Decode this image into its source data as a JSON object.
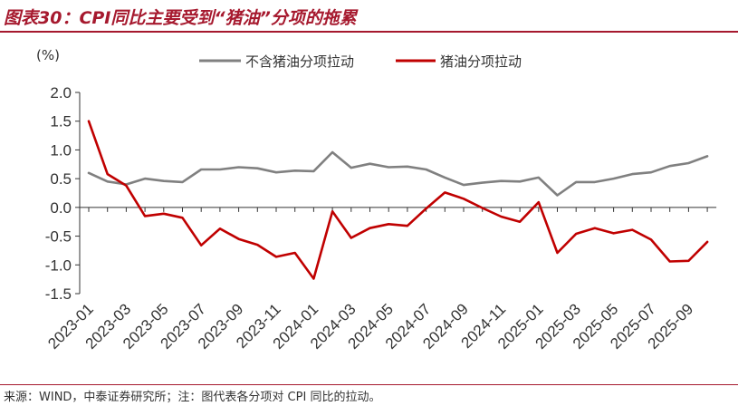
{
  "figure": {
    "title": "图表30：CPI同比主要受到“猪油”分项的拖累",
    "source": "来源：WIND，中泰证券研究所；注：图代表各分项对 CPI 同比的拉动。"
  },
  "chart_data": {
    "type": "line",
    "unit": "(%)",
    "ylim": [
      -1.5,
      2.0
    ],
    "yticks": [
      "2.0",
      "1.5",
      "1.0",
      "0.5",
      "0.0",
      "-0.5",
      "-1.0",
      "-1.5"
    ],
    "xtick_labels": [
      "2023-01",
      "2023-03",
      "2023-05",
      "2023-07",
      "2023-09",
      "2023-11",
      "2024-01",
      "2024-03",
      "2024-05",
      "2024-07",
      "2024-09",
      "2024-11",
      "2025-01",
      "2025-03",
      "2025-05",
      "2025-07",
      "2025-09"
    ],
    "x": [
      "2023-01",
      "2023-02",
      "2023-03",
      "2023-04",
      "2023-05",
      "2023-06",
      "2023-07",
      "2023-08",
      "2023-09",
      "2023-10",
      "2023-11",
      "2023-12",
      "2024-01",
      "2024-02",
      "2024-03",
      "2024-04",
      "2024-05",
      "2024-06",
      "2024-07",
      "2024-08",
      "2024-09",
      "2024-10",
      "2024-11",
      "2024-12",
      "2025-01",
      "2025-02",
      "2025-03",
      "2025-04",
      "2025-05",
      "2025-06",
      "2025-07",
      "2025-08",
      "2025-09",
      "2025-10"
    ],
    "legend_position": "top-center",
    "grid": false,
    "series": [
      {
        "name": "不含猪油分项拉动",
        "color": "#808080",
        "values": [
          0.6,
          0.45,
          0.4,
          0.5,
          0.46,
          0.44,
          0.66,
          0.66,
          0.7,
          0.68,
          0.61,
          0.64,
          0.63,
          0.96,
          0.69,
          0.76,
          0.7,
          0.71,
          0.66,
          0.52,
          0.39,
          0.43,
          0.46,
          0.45,
          0.52,
          0.21,
          0.44,
          0.44,
          0.5,
          0.58,
          0.61,
          0.72,
          0.77,
          0.89
        ]
      },
      {
        "name": "猪油分项拉动",
        "color": "#c00000",
        "values": [
          1.5,
          0.58,
          0.38,
          -0.15,
          -0.11,
          -0.18,
          -0.66,
          -0.37,
          -0.55,
          -0.65,
          -0.86,
          -0.79,
          -1.24,
          -0.07,
          -0.53,
          -0.36,
          -0.29,
          -0.32,
          -0.02,
          0.26,
          0.15,
          -0.01,
          -0.16,
          -0.25,
          0.09,
          -0.79,
          -0.46,
          -0.36,
          -0.45,
          -0.39,
          -0.56,
          -0.94,
          -0.93,
          -0.6
        ]
      }
    ]
  }
}
